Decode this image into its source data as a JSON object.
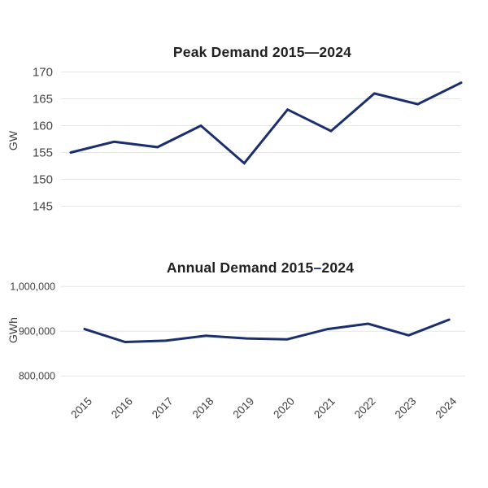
{
  "page": {
    "background": "#ffffff"
  },
  "colors": {
    "line": "#1b2e6d",
    "grid": "#e6e6e6",
    "title_text": "#212121",
    "axis_text": "#424242",
    "x_label_text": "#3c3c3c",
    "accent_dash": "#1b2e6d"
  },
  "chart_data": [
    {
      "type": "line",
      "title": "Peak Demand 2015—2024",
      "title_parts": {
        "prefix": "Peak Demand 2015",
        "dash": "—",
        "suffix": "2024",
        "dash_color": "#212121"
      },
      "ylabel": "GW",
      "xlabel": "",
      "categories": [
        "2015",
        "2016",
        "2017",
        "2018",
        "2019",
        "2020",
        "2021",
        "2022",
        "2023",
        "2024"
      ],
      "values": [
        155,
        157,
        156,
        160,
        153,
        163,
        159,
        166,
        164,
        168
      ],
      "ytick_labels": [
        "170",
        "165",
        "160",
        "155",
        "150",
        "145"
      ],
      "ytick_values": [
        170,
        165,
        160,
        155,
        150,
        145
      ],
      "ylim": [
        145,
        170
      ],
      "grid": true,
      "legend": "none",
      "x_axis_labels_visible": false,
      "line_color": "#1b2e6d"
    },
    {
      "type": "line",
      "title": "Annual Demand 2015–2024",
      "title_parts": {
        "prefix": "Annual Demand 2015",
        "dash": "–",
        "suffix": "2024",
        "dash_color": "#1b2e6d"
      },
      "ylabel": "GWh",
      "xlabel": "",
      "categories": [
        "2015",
        "2016",
        "2017",
        "2018",
        "2019",
        "2020",
        "2021",
        "2022",
        "2023",
        "2024"
      ],
      "values": [
        905000,
        876000,
        879000,
        890000,
        884000,
        882000,
        905000,
        917000,
        891000,
        926000
      ],
      "ytick_labels": [
        "1,000,000",
        "900,000",
        "800,000"
      ],
      "ytick_values": [
        1000000,
        900000,
        800000
      ],
      "ylim": [
        800000,
        1000000
      ],
      "grid": true,
      "legend": "none",
      "x_axis_labels_visible": true,
      "line_color": "#1b2e6d"
    }
  ]
}
